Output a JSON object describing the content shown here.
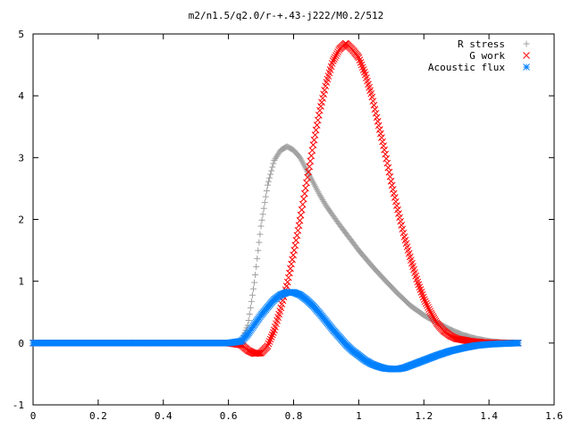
{
  "chart_data": {
    "type": "scatter",
    "title": "m2/n1.5/q2.0/r-+.43-j222/M0.2/512",
    "xlabel": "",
    "ylabel": "",
    "xlim": [
      0,
      1.6
    ],
    "ylim": [
      -1,
      5
    ],
    "x_ticks": [
      0,
      0.2,
      0.4,
      0.6,
      0.8,
      1,
      1.2,
      1.4,
      1.6
    ],
    "x_tick_labels": [
      "0",
      "0.2",
      "0.4",
      "0.6",
      "0.8",
      "1",
      "1.2",
      "1.4",
      "1.6"
    ],
    "y_ticks": [
      -1,
      0,
      1,
      2,
      3,
      4,
      5
    ],
    "y_tick_labels": [
      "-1",
      "0",
      "1",
      "2",
      "3",
      "4",
      "5"
    ],
    "grid": false,
    "legend_position": "top-right",
    "x_range": [
      0,
      1.49
    ],
    "series": [
      {
        "name": "R stress",
        "marker": "plus",
        "color": "#a0a0a0",
        "points": [
          [
            0,
            0
          ],
          [
            0.6,
            0
          ],
          [
            0.64,
            0.02
          ],
          [
            0.66,
            0.3
          ],
          [
            0.68,
            1.0
          ],
          [
            0.7,
            1.9
          ],
          [
            0.72,
            2.55
          ],
          [
            0.74,
            2.95
          ],
          [
            0.76,
            3.12
          ],
          [
            0.78,
            3.18
          ],
          [
            0.8,
            3.12
          ],
          [
            0.82,
            3.0
          ],
          [
            0.84,
            2.8
          ],
          [
            0.86,
            2.6
          ],
          [
            0.88,
            2.4
          ],
          [
            0.9,
            2.22
          ],
          [
            0.92,
            2.07
          ],
          [
            0.94,
            1.92
          ],
          [
            0.96,
            1.78
          ],
          [
            0.98,
            1.64
          ],
          [
            1.0,
            1.5
          ],
          [
            1.04,
            1.25
          ],
          [
            1.08,
            1.02
          ],
          [
            1.12,
            0.8
          ],
          [
            1.16,
            0.6
          ],
          [
            1.2,
            0.45
          ],
          [
            1.24,
            0.33
          ],
          [
            1.28,
            0.22
          ],
          [
            1.32,
            0.13
          ],
          [
            1.36,
            0.07
          ],
          [
            1.4,
            0.03
          ],
          [
            1.44,
            0.01
          ],
          [
            1.49,
            0
          ]
        ]
      },
      {
        "name": "G work",
        "marker": "cross",
        "color": "#ff0000",
        "points": [
          [
            0,
            0
          ],
          [
            0.6,
            0
          ],
          [
            0.64,
            -0.03
          ],
          [
            0.66,
            -0.12
          ],
          [
            0.68,
            -0.17
          ],
          [
            0.7,
            -0.16
          ],
          [
            0.72,
            -0.05
          ],
          [
            0.74,
            0.2
          ],
          [
            0.76,
            0.55
          ],
          [
            0.78,
            0.95
          ],
          [
            0.8,
            1.45
          ],
          [
            0.82,
            2.0
          ],
          [
            0.84,
            2.6
          ],
          [
            0.86,
            3.2
          ],
          [
            0.88,
            3.75
          ],
          [
            0.9,
            4.2
          ],
          [
            0.92,
            4.55
          ],
          [
            0.94,
            4.75
          ],
          [
            0.96,
            4.85
          ],
          [
            0.98,
            4.75
          ],
          [
            1.0,
            4.62
          ],
          [
            1.02,
            4.35
          ],
          [
            1.04,
            4.0
          ],
          [
            1.06,
            3.55
          ],
          [
            1.08,
            3.1
          ],
          [
            1.1,
            2.6
          ],
          [
            1.12,
            2.15
          ],
          [
            1.14,
            1.72
          ],
          [
            1.16,
            1.35
          ],
          [
            1.18,
            1.0
          ],
          [
            1.2,
            0.72
          ],
          [
            1.22,
            0.5
          ],
          [
            1.24,
            0.32
          ],
          [
            1.26,
            0.2
          ],
          [
            1.28,
            0.12
          ],
          [
            1.3,
            0.07
          ],
          [
            1.34,
            0.03
          ],
          [
            1.38,
            0.01
          ],
          [
            1.42,
            0
          ],
          [
            1.49,
            0
          ]
        ]
      },
      {
        "name": "Acoustic flux",
        "marker": "star",
        "color": "#0080ff",
        "points": [
          [
            0,
            0
          ],
          [
            0.6,
            0
          ],
          [
            0.64,
            0.03
          ],
          [
            0.66,
            0.15
          ],
          [
            0.68,
            0.3
          ],
          [
            0.7,
            0.45
          ],
          [
            0.72,
            0.58
          ],
          [
            0.74,
            0.7
          ],
          [
            0.76,
            0.78
          ],
          [
            0.78,
            0.82
          ],
          [
            0.8,
            0.82
          ],
          [
            0.82,
            0.78
          ],
          [
            0.84,
            0.7
          ],
          [
            0.86,
            0.6
          ],
          [
            0.88,
            0.48
          ],
          [
            0.9,
            0.35
          ],
          [
            0.92,
            0.22
          ],
          [
            0.94,
            0.1
          ],
          [
            0.96,
            -0.02
          ],
          [
            0.98,
            -0.12
          ],
          [
            1.0,
            -0.2
          ],
          [
            1.02,
            -0.28
          ],
          [
            1.04,
            -0.34
          ],
          [
            1.06,
            -0.38
          ],
          [
            1.08,
            -0.41
          ],
          [
            1.1,
            -0.42
          ],
          [
            1.12,
            -0.42
          ],
          [
            1.14,
            -0.4
          ],
          [
            1.16,
            -0.36
          ],
          [
            1.18,
            -0.32
          ],
          [
            1.2,
            -0.28
          ],
          [
            1.24,
            -0.2
          ],
          [
            1.28,
            -0.13
          ],
          [
            1.32,
            -0.08
          ],
          [
            1.36,
            -0.04
          ],
          [
            1.4,
            -0.02
          ],
          [
            1.44,
            -0.01
          ],
          [
            1.49,
            0
          ]
        ]
      }
    ]
  }
}
